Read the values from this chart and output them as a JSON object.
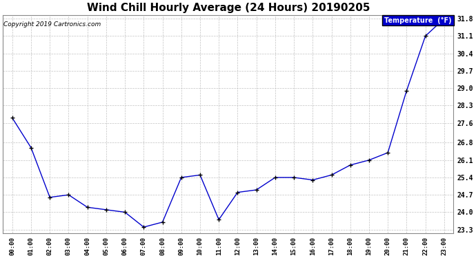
{
  "title": "Wind Chill Hourly Average (24 Hours) 20190205",
  "copyright_text": "Copyright 2019 Cartronics.com",
  "legend_label": "Temperature  (°F)",
  "x_labels": [
    "00:00",
    "01:00",
    "02:00",
    "03:00",
    "04:00",
    "05:00",
    "06:00",
    "07:00",
    "08:00",
    "09:00",
    "10:00",
    "11:00",
    "12:00",
    "13:00",
    "14:00",
    "15:00",
    "16:00",
    "17:00",
    "18:00",
    "19:00",
    "20:00",
    "21:00",
    "22:00",
    "23:00"
  ],
  "y_values": [
    27.8,
    26.6,
    24.6,
    24.7,
    24.2,
    24.1,
    24.0,
    23.4,
    23.6,
    25.4,
    25.5,
    23.7,
    24.8,
    24.9,
    25.4,
    25.4,
    25.3,
    25.5,
    25.9,
    26.1,
    26.4,
    28.9,
    31.1,
    31.8
  ],
  "y_ticks": [
    23.3,
    24.0,
    24.7,
    25.4,
    26.1,
    26.8,
    27.6,
    28.3,
    29.0,
    29.7,
    30.4,
    31.1,
    31.8
  ],
  "ylim_min": 23.15,
  "ylim_max": 31.95,
  "line_color": "#0000cc",
  "marker": "+",
  "marker_color": "#000000",
  "bg_color": "#ffffff",
  "grid_color": "#bbbbbb",
  "title_fontsize": 11,
  "legend_bg": "#0000cc",
  "legend_fg": "#ffffff",
  "figwidth": 6.9,
  "figheight": 3.75,
  "dpi": 100
}
